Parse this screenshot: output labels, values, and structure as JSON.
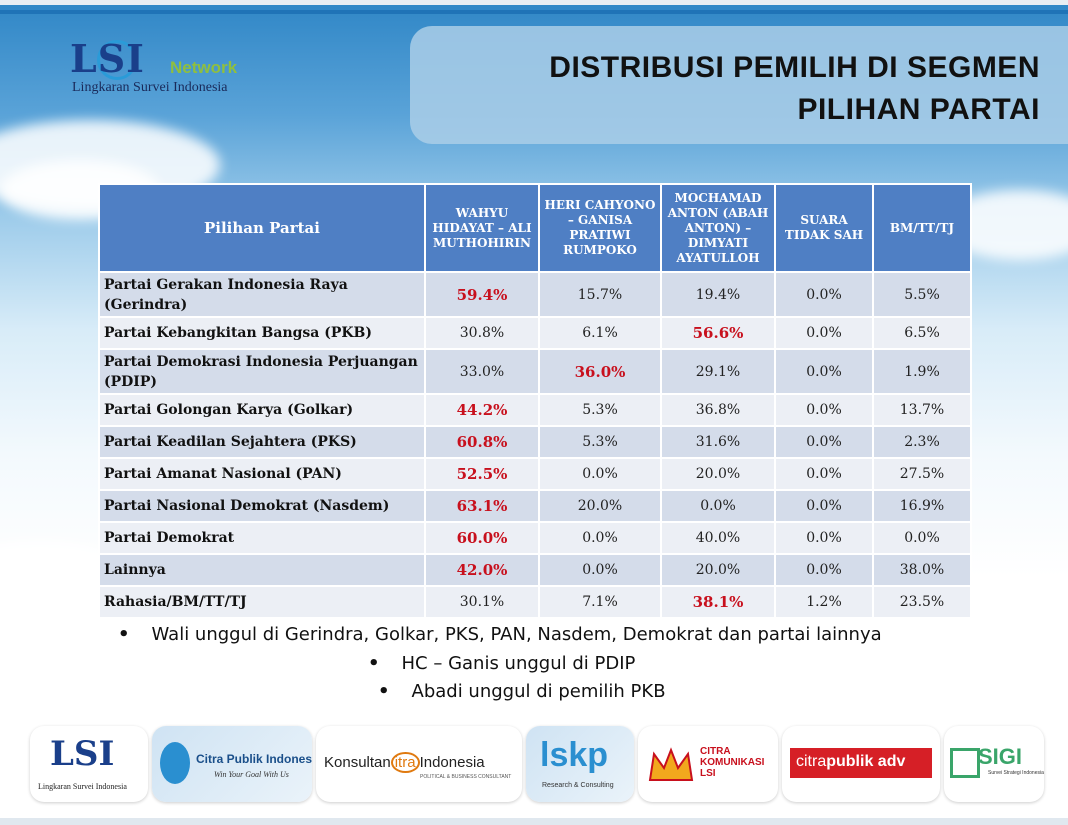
{
  "title_line1": "DISTRIBUSI PEMILIH DI SEGMEN",
  "title_line2": "PILIHAN PARTAI",
  "logo": {
    "mark": "LSI",
    "network": "Network",
    "subtitle": "Lingkaran Survei Indonesia"
  },
  "table": {
    "headers": [
      "Pilihan Partai",
      "WAHYU HIDAYAT – ALI MUTHOHIRIN",
      "HERI CAHYONO – GANISA PRATIWI RUMPOKO",
      "MOCHAMAD ANTON (ABAH ANTON) – DIMYATI AYATULLOH",
      "SUARA TIDAK SAH",
      "BM/TT/TJ"
    ],
    "rows": [
      {
        "name": "Partai Gerakan Indonesia Raya (Gerindra)",
        "values": [
          "59.4%",
          "15.7%",
          "19.4%",
          "0.0%",
          "5.5%"
        ],
        "highlight": 0
      },
      {
        "name": "Partai Kebangkitan Bangsa (PKB)",
        "values": [
          "30.8%",
          "6.1%",
          "56.6%",
          "0.0%",
          "6.5%"
        ],
        "highlight": 2
      },
      {
        "name": "Partai Demokrasi Indonesia Perjuangan (PDIP)",
        "values": [
          "33.0%",
          "36.0%",
          "29.1%",
          "0.0%",
          "1.9%"
        ],
        "highlight": 1
      },
      {
        "name": "Partai Golongan Karya (Golkar)",
        "values": [
          "44.2%",
          "5.3%",
          "36.8%",
          "0.0%",
          "13.7%"
        ],
        "highlight": 0
      },
      {
        "name": "Partai Keadilan Sejahtera (PKS)",
        "values": [
          "60.8%",
          "5.3%",
          "31.6%",
          "0.0%",
          "2.3%"
        ],
        "highlight": 0
      },
      {
        "name": "Partai Amanat Nasional (PAN)",
        "values": [
          "52.5%",
          "0.0%",
          "20.0%",
          "0.0%",
          "27.5%"
        ],
        "highlight": 0
      },
      {
        "name": "Partai Nasional Demokrat (Nasdem)",
        "values": [
          "63.1%",
          "20.0%",
          "0.0%",
          "0.0%",
          "16.9%"
        ],
        "highlight": 0
      },
      {
        "name": "Partai Demokrat",
        "values": [
          "60.0%",
          "0.0%",
          "40.0%",
          "0.0%",
          "0.0%"
        ],
        "highlight": 0
      },
      {
        "name": "Lainnya",
        "values": [
          "42.0%",
          "0.0%",
          "20.0%",
          "0.0%",
          "38.0%"
        ],
        "highlight": 0
      },
      {
        "name": "Rahasia/BM/TT/TJ",
        "values": [
          "30.1%",
          "7.1%",
          "38.1%",
          "1.2%",
          "23.5%"
        ],
        "highlight": 2
      }
    ]
  },
  "bullets": [
    "Wali unggul di Gerindra, Golkar, PKS, PAN, Nasdem, Demokrat dan partai lainnya",
    "HC – Ganis unggul di PDIP",
    "Abadi unggul di pemilih PKB"
  ],
  "footer_logos": {
    "lsi": {
      "mark": "LSI",
      "sub": "Lingkaran Survei Indonesia"
    },
    "citra_publik": {
      "name": "Citra Publik Indonesia",
      "tagline": "Win Your Goal With Us"
    },
    "konsultan": {
      "prefix": "Konsultan",
      "middle": "itra",
      "suffix": "Indonesia",
      "tagline": "POLITICAL & BUSINESS CONSULTANT"
    },
    "lskp": {
      "mark": "lskp",
      "tagline": "Research & Consulting"
    },
    "citra_komunikasi": {
      "line1": "CITRA",
      "line2": "KOMUNIKASI",
      "line3": "LSI"
    },
    "citrapublik_adv": {
      "part1": "citra",
      "part2": "publik adv"
    },
    "sigi": {
      "mark": "SIGI",
      "tagline": "Survei Strategi Indonesia"
    }
  },
  "colors": {
    "header_bg": "#4f7fc4",
    "row_odd": "#d4dcea",
    "row_even": "#eceff5",
    "highlight": "#c8101d"
  }
}
